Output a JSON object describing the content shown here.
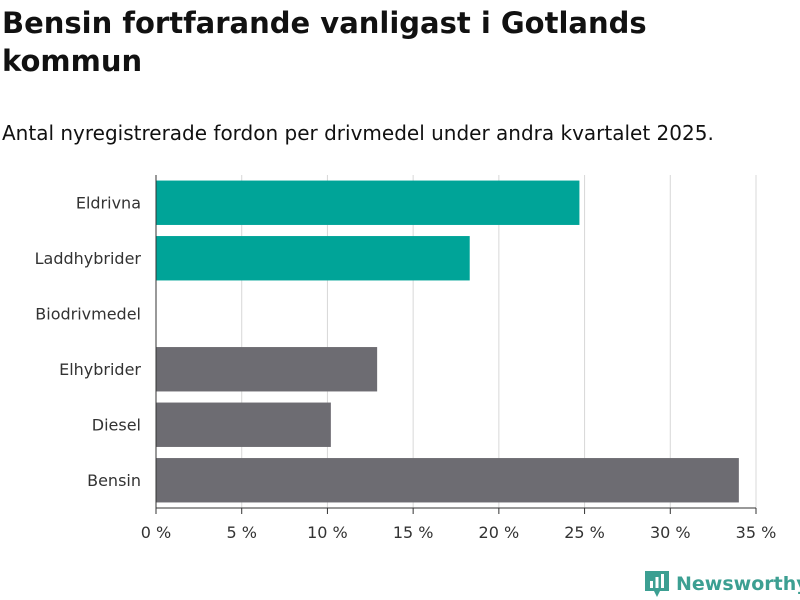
{
  "header": {
    "title": "Bensin fortfarande vanligast i Gotlands kommun",
    "subtitle": "Antal nyregistrerade fordon per drivmedel under andra kvartalet 2025."
  },
  "chart_data": {
    "type": "bar",
    "orientation": "horizontal",
    "categories": [
      "Eldrivna",
      "Laddhybrider",
      "Biodrivmedel",
      "Elhybrider",
      "Diesel",
      "Bensin"
    ],
    "values": [
      24.7,
      18.3,
      0,
      12.9,
      10.2,
      34.0
    ],
    "bar_colors": [
      "#00a498",
      "#00a498",
      "#00a498",
      "#6d6c72",
      "#6d6c72",
      "#6d6c72"
    ],
    "xlim": [
      0,
      35
    ],
    "xticks": [
      0,
      5,
      10,
      15,
      20,
      25,
      30,
      35
    ],
    "xtick_labels": [
      "0 %",
      "5 %",
      "10 %",
      "15 %",
      "20 %",
      "25 %",
      "30 %",
      "35 %"
    ],
    "grid": true,
    "xlabel": "",
    "ylabel": ""
  },
  "brand": {
    "name": "Newsworthy",
    "color": "#3c9f92",
    "icon": "bar-chart-icon"
  }
}
